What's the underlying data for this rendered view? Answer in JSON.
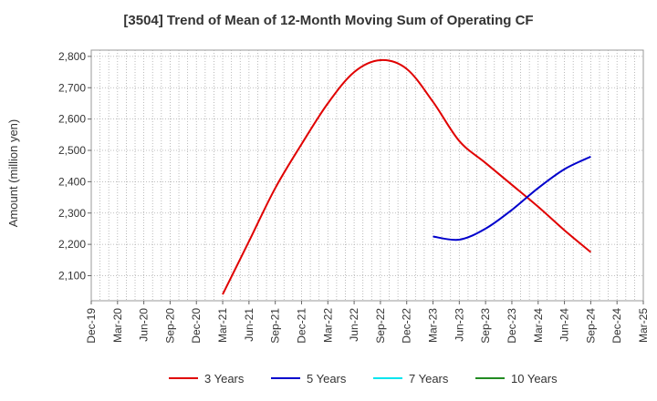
{
  "chart_data": {
    "type": "line",
    "title": "[3504]  Trend of Mean of 12-Month Moving Sum of Operating CF",
    "xlabel": "",
    "ylabel": "Amount (million yen)",
    "ylim": [
      2020,
      2820
    ],
    "yticks": [
      2100,
      2200,
      2300,
      2400,
      2500,
      2600,
      2700,
      2800
    ],
    "ytick_labels": [
      "2,100",
      "2,200",
      "2,300",
      "2,400",
      "2,500",
      "2,600",
      "2,700",
      "2,800"
    ],
    "x_categories": [
      "Dec-19",
      "Mar-20",
      "Jun-20",
      "Sep-20",
      "Dec-20",
      "Mar-21",
      "Jun-21",
      "Sep-21",
      "Dec-21",
      "Mar-22",
      "Jun-22",
      "Sep-22",
      "Dec-22",
      "Mar-23",
      "Jun-23",
      "Sep-23",
      "Dec-23",
      "Mar-24",
      "Jun-24",
      "Sep-24",
      "Dec-24",
      "Mar-25"
    ],
    "grid": true,
    "series": [
      {
        "name": "3 Years",
        "color": "#e00000",
        "points": [
          {
            "x": "Mar-21",
            "y": 2040
          },
          {
            "x": "Jun-21",
            "y": 2210
          },
          {
            "x": "Sep-21",
            "y": 2380
          },
          {
            "x": "Dec-21",
            "y": 2520
          },
          {
            "x": "Mar-22",
            "y": 2650
          },
          {
            "x": "Jun-22",
            "y": 2750
          },
          {
            "x": "Sep-22",
            "y": 2788
          },
          {
            "x": "Dec-22",
            "y": 2760
          },
          {
            "x": "Mar-23",
            "y": 2655
          },
          {
            "x": "Jun-23",
            "y": 2530
          },
          {
            "x": "Sep-23",
            "y": 2460
          },
          {
            "x": "Dec-23",
            "y": 2390
          },
          {
            "x": "Mar-24",
            "y": 2320
          },
          {
            "x": "Jun-24",
            "y": 2245
          },
          {
            "x": "Sep-24",
            "y": 2175
          }
        ]
      },
      {
        "name": "5 Years",
        "color": "#0000cc",
        "points": [
          {
            "x": "Mar-23",
            "y": 2225
          },
          {
            "x": "Jun-23",
            "y": 2215
          },
          {
            "x": "Sep-23",
            "y": 2250
          },
          {
            "x": "Dec-23",
            "y": 2310
          },
          {
            "x": "Mar-24",
            "y": 2380
          },
          {
            "x": "Jun-24",
            "y": 2440
          },
          {
            "x": "Sep-24",
            "y": 2480
          }
        ]
      },
      {
        "name": "7 Years",
        "color": "#00e5ee",
        "points": []
      },
      {
        "name": "10 Years",
        "color": "#228b22",
        "points": []
      }
    ],
    "legend_position": "bottom"
  }
}
